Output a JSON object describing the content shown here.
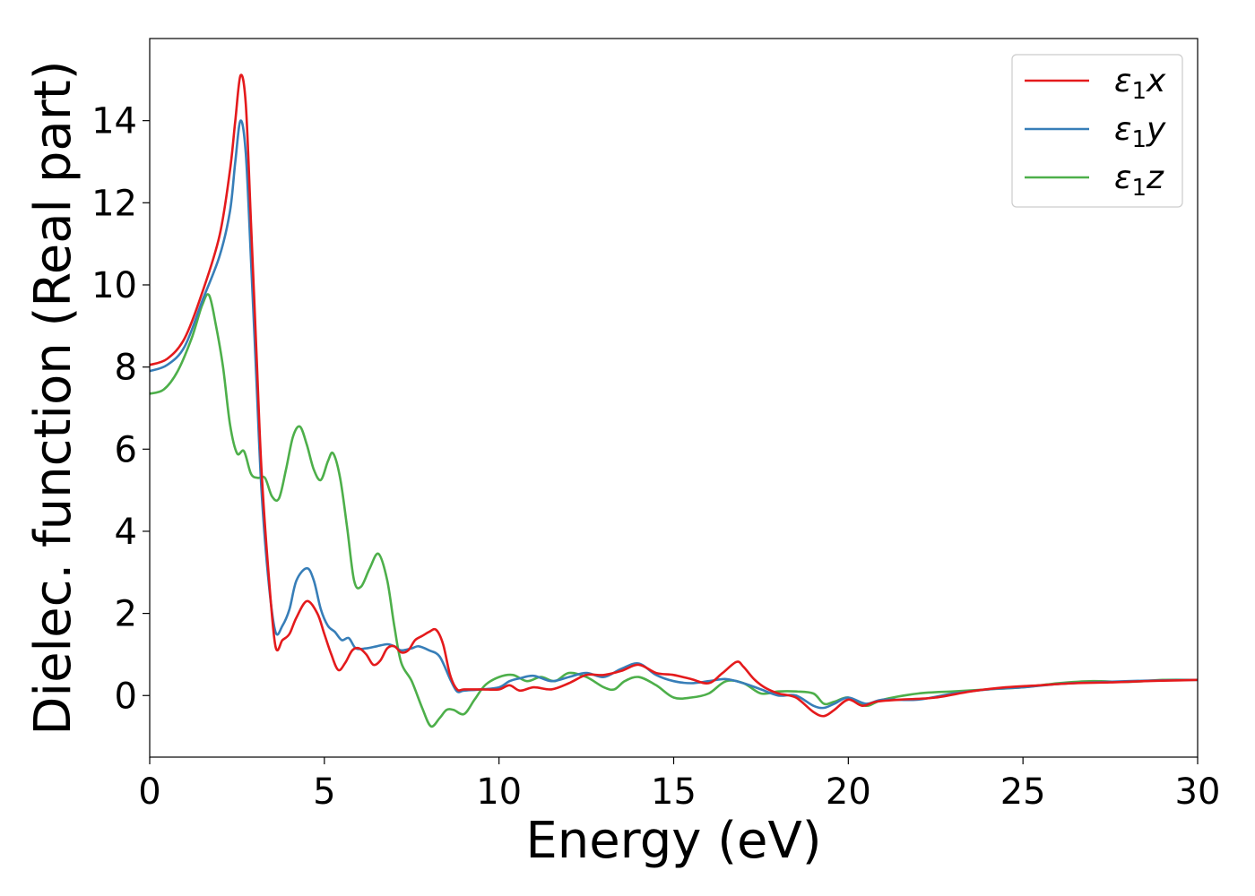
{
  "chart_data": {
    "type": "line",
    "xlabel": "Energy (eV)",
    "ylabel": "Dielec. function (Real part)",
    "xlim": [
      0,
      30
    ],
    "ylim": [
      -1.5,
      16
    ],
    "xticks": [
      0,
      5,
      10,
      15,
      20,
      25,
      30
    ],
    "yticks": [
      0,
      2,
      4,
      6,
      8,
      10,
      12,
      14
    ],
    "grid": false,
    "legend_position": "top-right",
    "series": [
      {
        "name": "x",
        "legend_label": {
          "prefix": "ε",
          "sub": "1",
          "suffix": "x"
        },
        "color": "#e41a1c",
        "points": [
          [
            0,
            8.05
          ],
          [
            0.5,
            8.2
          ],
          [
            1.0,
            8.7
          ],
          [
            1.5,
            9.8
          ],
          [
            2.0,
            11.2
          ],
          [
            2.3,
            12.8
          ],
          [
            2.45,
            14.0
          ],
          [
            2.6,
            15.1
          ],
          [
            2.75,
            14.4
          ],
          [
            2.9,
            11.5
          ],
          [
            3.05,
            8.5
          ],
          [
            3.2,
            5.5
          ],
          [
            3.4,
            3.0
          ],
          [
            3.6,
            1.2
          ],
          [
            3.8,
            1.35
          ],
          [
            4.0,
            1.5
          ],
          [
            4.2,
            1.9
          ],
          [
            4.5,
            2.3
          ],
          [
            4.8,
            2.0
          ],
          [
            5.0,
            1.5
          ],
          [
            5.2,
            1.0
          ],
          [
            5.4,
            0.62
          ],
          [
            5.6,
            0.8
          ],
          [
            5.8,
            1.1
          ],
          [
            6.0,
            1.15
          ],
          [
            6.2,
            1.0
          ],
          [
            6.4,
            0.75
          ],
          [
            6.6,
            0.85
          ],
          [
            6.8,
            1.15
          ],
          [
            7.0,
            1.2
          ],
          [
            7.2,
            1.05
          ],
          [
            7.4,
            1.1
          ],
          [
            7.6,
            1.35
          ],
          [
            7.8,
            1.45
          ],
          [
            8.0,
            1.55
          ],
          [
            8.2,
            1.6
          ],
          [
            8.4,
            1.25
          ],
          [
            8.6,
            0.5
          ],
          [
            8.8,
            0.15
          ],
          [
            9.0,
            0.15
          ],
          [
            9.5,
            0.15
          ],
          [
            10.0,
            0.15
          ],
          [
            10.3,
            0.25
          ],
          [
            10.6,
            0.12
          ],
          [
            11.0,
            0.2
          ],
          [
            11.5,
            0.15
          ],
          [
            12.0,
            0.3
          ],
          [
            12.5,
            0.5
          ],
          [
            13.0,
            0.5
          ],
          [
            13.5,
            0.6
          ],
          [
            14.0,
            0.75
          ],
          [
            14.5,
            0.55
          ],
          [
            15.0,
            0.5
          ],
          [
            15.5,
            0.4
          ],
          [
            16.0,
            0.3
          ],
          [
            16.4,
            0.55
          ],
          [
            16.8,
            0.82
          ],
          [
            17.0,
            0.7
          ],
          [
            17.3,
            0.4
          ],
          [
            17.6,
            0.2
          ],
          [
            18.0,
            0.05
          ],
          [
            18.5,
            -0.05
          ],
          [
            19.0,
            -0.4
          ],
          [
            19.3,
            -0.5
          ],
          [
            19.6,
            -0.35
          ],
          [
            20.0,
            -0.1
          ],
          [
            20.4,
            -0.25
          ],
          [
            20.8,
            -0.15
          ],
          [
            21.5,
            -0.1
          ],
          [
            22.5,
            -0.05
          ],
          [
            23.5,
            0.1
          ],
          [
            24.5,
            0.2
          ],
          [
            25.5,
            0.25
          ],
          [
            26.5,
            0.3
          ],
          [
            27.5,
            0.32
          ],
          [
            28.5,
            0.35
          ],
          [
            29.5,
            0.37
          ],
          [
            30,
            0.38
          ]
        ]
      },
      {
        "name": "y",
        "legend_label": {
          "prefix": "ε",
          "sub": "1",
          "suffix": "y"
        },
        "color": "#377eb8",
        "points": [
          [
            0,
            7.9
          ],
          [
            0.5,
            8.05
          ],
          [
            1.0,
            8.5
          ],
          [
            1.5,
            9.6
          ],
          [
            2.0,
            10.7
          ],
          [
            2.3,
            11.8
          ],
          [
            2.45,
            13.0
          ],
          [
            2.6,
            14.0
          ],
          [
            2.75,
            13.2
          ],
          [
            2.9,
            10.6
          ],
          [
            3.05,
            7.8
          ],
          [
            3.2,
            5.0
          ],
          [
            3.4,
            2.8
          ],
          [
            3.6,
            1.55
          ],
          [
            3.8,
            1.7
          ],
          [
            4.0,
            2.1
          ],
          [
            4.2,
            2.8
          ],
          [
            4.5,
            3.1
          ],
          [
            4.7,
            2.8
          ],
          [
            4.9,
            2.1
          ],
          [
            5.1,
            1.7
          ],
          [
            5.3,
            1.55
          ],
          [
            5.5,
            1.35
          ],
          [
            5.7,
            1.4
          ],
          [
            5.9,
            1.15
          ],
          [
            6.2,
            1.15
          ],
          [
            6.5,
            1.2
          ],
          [
            6.8,
            1.25
          ],
          [
            7.0,
            1.2
          ],
          [
            7.2,
            1.1
          ],
          [
            7.5,
            1.15
          ],
          [
            7.7,
            1.2
          ],
          [
            8.0,
            1.1
          ],
          [
            8.3,
            0.95
          ],
          [
            8.6,
            0.4
          ],
          [
            8.8,
            0.1
          ],
          [
            9.0,
            0.12
          ],
          [
            9.5,
            0.15
          ],
          [
            10.0,
            0.2
          ],
          [
            10.3,
            0.35
          ],
          [
            10.6,
            0.42
          ],
          [
            11.0,
            0.48
          ],
          [
            11.5,
            0.35
          ],
          [
            12.0,
            0.45
          ],
          [
            12.5,
            0.55
          ],
          [
            13.0,
            0.45
          ],
          [
            13.5,
            0.65
          ],
          [
            14.0,
            0.78
          ],
          [
            14.5,
            0.5
          ],
          [
            15.0,
            0.35
          ],
          [
            15.5,
            0.3
          ],
          [
            16.0,
            0.35
          ],
          [
            16.5,
            0.4
          ],
          [
            17.0,
            0.3
          ],
          [
            17.5,
            0.15
          ],
          [
            18.0,
            0.0
          ],
          [
            18.5,
            0.0
          ],
          [
            19.0,
            -0.25
          ],
          [
            19.3,
            -0.3
          ],
          [
            19.6,
            -0.2
          ],
          [
            20.0,
            -0.05
          ],
          [
            20.5,
            -0.2
          ],
          [
            21.0,
            -0.1
          ],
          [
            22.0,
            -0.1
          ],
          [
            23.0,
            0.05
          ],
          [
            24.0,
            0.15
          ],
          [
            25.0,
            0.2
          ],
          [
            26.0,
            0.28
          ],
          [
            27.0,
            0.32
          ],
          [
            28.0,
            0.35
          ],
          [
            29.0,
            0.37
          ],
          [
            30,
            0.38
          ]
        ]
      },
      {
        "name": "z",
        "legend_label": {
          "prefix": "ε",
          "sub": "1",
          "suffix": "z"
        },
        "color": "#4daf4a",
        "points": [
          [
            0,
            7.35
          ],
          [
            0.4,
            7.45
          ],
          [
            0.8,
            7.9
          ],
          [
            1.2,
            8.7
          ],
          [
            1.5,
            9.5
          ],
          [
            1.7,
            9.75
          ],
          [
            1.9,
            9.0
          ],
          [
            2.1,
            8.0
          ],
          [
            2.3,
            6.6
          ],
          [
            2.5,
            5.9
          ],
          [
            2.7,
            5.95
          ],
          [
            2.9,
            5.4
          ],
          [
            3.1,
            5.3
          ],
          [
            3.3,
            5.3
          ],
          [
            3.5,
            4.85
          ],
          [
            3.7,
            4.8
          ],
          [
            3.9,
            5.5
          ],
          [
            4.1,
            6.3
          ],
          [
            4.3,
            6.55
          ],
          [
            4.5,
            6.1
          ],
          [
            4.7,
            5.5
          ],
          [
            4.9,
            5.25
          ],
          [
            5.1,
            5.7
          ],
          [
            5.25,
            5.9
          ],
          [
            5.45,
            5.3
          ],
          [
            5.65,
            4.1
          ],
          [
            5.85,
            2.8
          ],
          [
            6.05,
            2.65
          ],
          [
            6.3,
            3.1
          ],
          [
            6.55,
            3.45
          ],
          [
            6.8,
            2.8
          ],
          [
            7.0,
            1.7
          ],
          [
            7.2,
            0.8
          ],
          [
            7.5,
            0.35
          ],
          [
            7.8,
            -0.3
          ],
          [
            8.05,
            -0.75
          ],
          [
            8.3,
            -0.55
          ],
          [
            8.5,
            -0.35
          ],
          [
            8.7,
            -0.35
          ],
          [
            9.0,
            -0.45
          ],
          [
            9.3,
            -0.1
          ],
          [
            9.6,
            0.25
          ],
          [
            10.0,
            0.45
          ],
          [
            10.4,
            0.5
          ],
          [
            10.8,
            0.35
          ],
          [
            11.2,
            0.45
          ],
          [
            11.6,
            0.35
          ],
          [
            12.0,
            0.55
          ],
          [
            12.5,
            0.45
          ],
          [
            13.0,
            0.2
          ],
          [
            13.3,
            0.15
          ],
          [
            13.6,
            0.35
          ],
          [
            14.0,
            0.45
          ],
          [
            14.5,
            0.25
          ],
          [
            15.0,
            -0.05
          ],
          [
            15.5,
            -0.05
          ],
          [
            16.0,
            0.05
          ],
          [
            16.5,
            0.35
          ],
          [
            17.0,
            0.3
          ],
          [
            17.5,
            0.05
          ],
          [
            18.0,
            0.1
          ],
          [
            18.5,
            0.1
          ],
          [
            19.0,
            0.05
          ],
          [
            19.3,
            -0.2
          ],
          [
            19.6,
            -0.15
          ],
          [
            20.0,
            -0.05
          ],
          [
            20.5,
            -0.25
          ],
          [
            21.0,
            -0.1
          ],
          [
            22.0,
            0.05
          ],
          [
            23.0,
            0.1
          ],
          [
            24.0,
            0.15
          ],
          [
            25.0,
            0.2
          ],
          [
            26.0,
            0.3
          ],
          [
            27.0,
            0.35
          ],
          [
            28.0,
            0.33
          ],
          [
            29.0,
            0.38
          ],
          [
            30,
            0.38
          ]
        ]
      }
    ]
  }
}
